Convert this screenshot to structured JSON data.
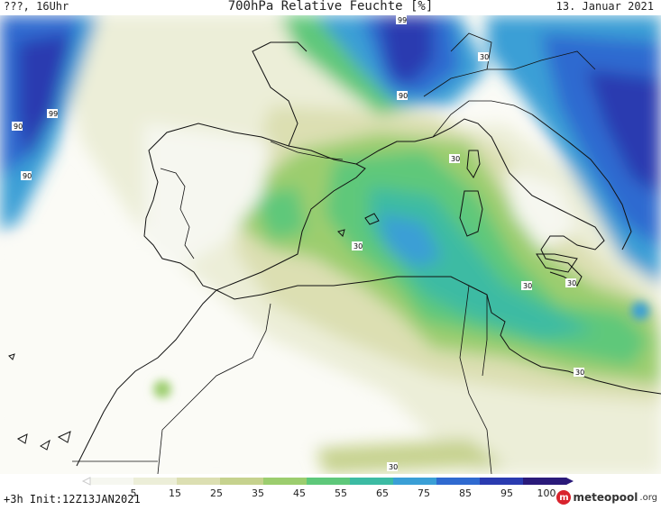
{
  "header": {
    "left": "???, 16Uhr",
    "title": "700hPa Relative Feuchte [%]",
    "date": "13. Januar 2021"
  },
  "footer": {
    "left": "+3h  Init:12Z13JAN2021",
    "logo_text": "meteopool",
    "logo_suffix": ".org"
  },
  "colorbar": {
    "ticks": [
      "5",
      "15",
      "25",
      "35",
      "45",
      "55",
      "65",
      "75",
      "85",
      "95",
      "100"
    ],
    "colors": [
      "#f6f7f0",
      "#eceed8",
      "#dcdfb2",
      "#c6d28e",
      "#9ccd6e",
      "#5ec87a",
      "#3cbba3",
      "#3a9fd6",
      "#2f6ad0",
      "#2a3bb0",
      "#2a1a7a"
    ]
  },
  "contour_labels": [
    {
      "text": "99",
      "id": "label-99-top"
    },
    {
      "text": "90",
      "id": "label-90-top"
    },
    {
      "text": "30",
      "id": "label-30-alps"
    },
    {
      "text": "90",
      "id": "label-90-atlantic"
    },
    {
      "text": "99",
      "id": "label-99-atlantic"
    },
    {
      "text": "90",
      "id": "label-90-atlantic-low"
    },
    {
      "text": "30",
      "id": "label-30-corsica"
    },
    {
      "text": "30",
      "id": "label-30-spain"
    },
    {
      "text": "30",
      "id": "label-30-italy"
    },
    {
      "text": "30",
      "id": "label-30-tunisia"
    },
    {
      "text": "30",
      "id": "label-30-libya"
    },
    {
      "text": "30",
      "id": "label-30-sahara"
    }
  ]
}
